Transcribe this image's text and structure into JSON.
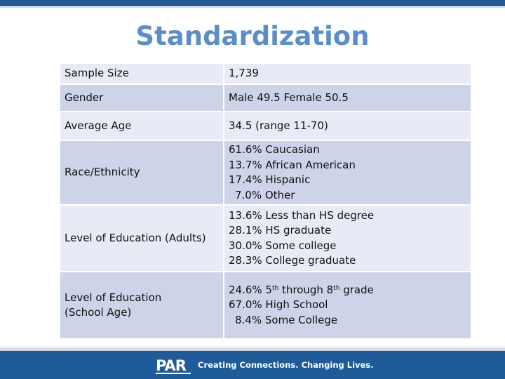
{
  "title": "Standardization",
  "rows": [
    {
      "label": "Sample Size",
      "lines": [
        "1,739"
      ]
    },
    {
      "label": "Gender",
      "lines": [
        "Male 49.5 Female 50.5"
      ]
    },
    {
      "label": "Average Age",
      "lines": [
        "34.5 (range 11-70)"
      ]
    },
    {
      "label": "Race/Ethnicity",
      "lines": [
        "61.6% Caucasian",
        "13.7% African American",
        "17.4% Hispanic",
        "7.0% Other"
      ]
    },
    {
      "label": "Level of Education (Adults)",
      "lines": [
        "13.6% Less than HS degree",
        "28.1% HS graduate",
        "30.0% Some college",
        "28.3% College graduate"
      ]
    },
    {
      "label_lines": [
        "Level of Education",
        "(School Age)"
      ],
      "line1": {
        "a": "24.6% 5",
        "sup1": "th",
        "b": " through 8",
        "sup2": "th",
        "c": " grade"
      },
      "lines": [
        "67.0% High School",
        "8.4% Some College"
      ]
    }
  ],
  "footer": {
    "logo": "PAR",
    "tagline": "Creating Connections. Changing Lives."
  }
}
